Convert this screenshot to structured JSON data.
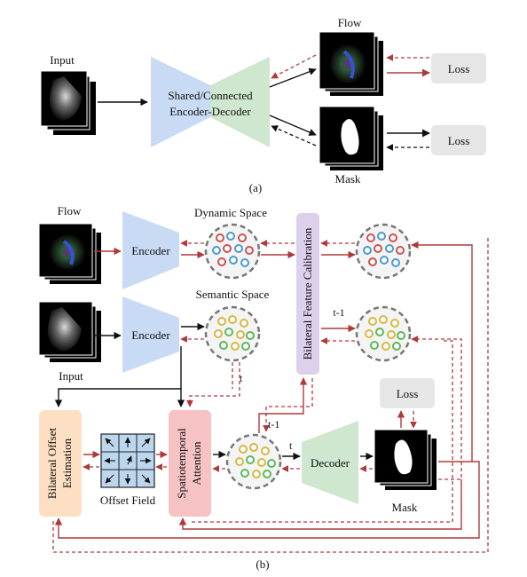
{
  "part_a": {
    "input_label": "Input",
    "flow_label": "Flow",
    "mask_label": "Mask",
    "encdec_line1": "Shared/Connected",
    "encdec_line2": "Encoder-Decoder",
    "loss_top": "Loss",
    "loss_bottom": "Loss",
    "caption": "(a)"
  },
  "part_b": {
    "flow_label": "Flow",
    "input_label": "Input",
    "encoder_top": "Encoder",
    "encoder_bottom": "Encoder",
    "dynamic_space": "Dynamic Space",
    "semantic_space": "Semantic Space",
    "bilateral_calibration": "Bilateral Feature Calibration",
    "bilateral_offset_line1": "Bilateral Offset",
    "bilateral_offset_line2": "Estimation",
    "offset_field": "Offset Field",
    "spatiotemporal_line1": "Spatiotemporal",
    "spatiotemporal_line2": "Attention",
    "decoder": "Decoder",
    "mask_label": "Mask",
    "loss": "Loss",
    "t_label_1": "t",
    "t_label_2": "t",
    "t_minus_1_a": "t-1",
    "t_minus_1_b": "t-1",
    "caption": "(b)"
  },
  "colors": {
    "encoder_blue": "#c9daf4",
    "decoder_green": "#cfe6cf",
    "calibration_purple": "#ddd0ea",
    "offset_orange": "#fde0c4",
    "attention_pink": "#f6c2c4",
    "offset_grid_blue": "#bcd6ee",
    "arrow_red": "#b03a3a",
    "loss_gray": "#e6e6e6"
  }
}
